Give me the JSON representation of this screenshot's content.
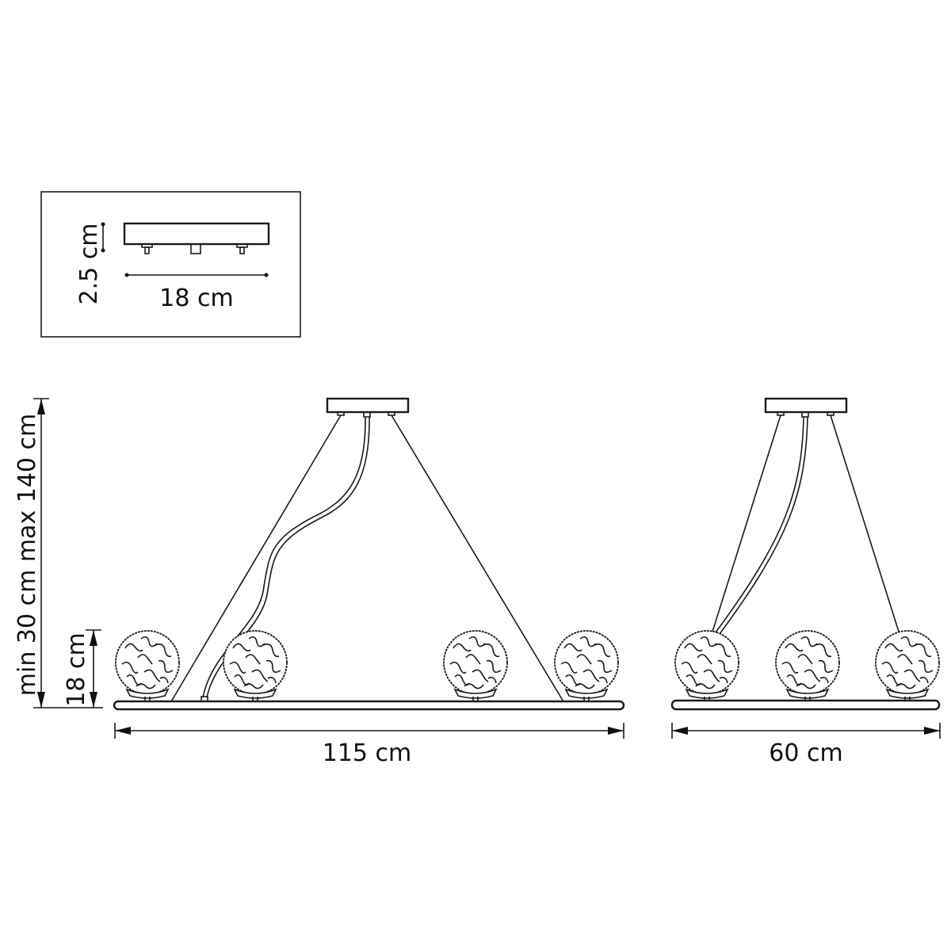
{
  "inset": {
    "height_label": "2.5 cm",
    "width_label": "18 cm"
  },
  "front_view": {
    "height_range_label": "min 30 cm max 140 cm",
    "shade_height_label": "18 cm",
    "width_label": "115 cm"
  },
  "side_view": {
    "width_label": "60 cm"
  },
  "colors": {
    "line": "#1a1a1a",
    "background": "#ffffff"
  }
}
